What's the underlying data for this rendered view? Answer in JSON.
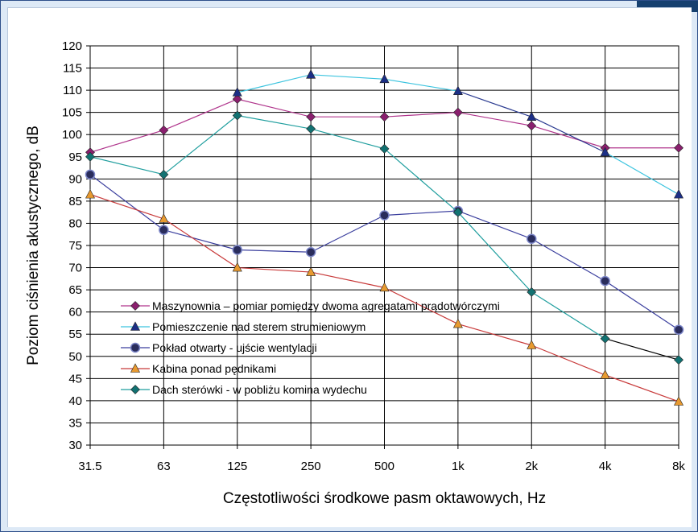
{
  "chart_data": {
    "type": "line",
    "title": "",
    "xlabel": "Częstotliwości środkowe pasm oktawowych, Hz",
    "ylabel": "Poziom ciśnienia akustycznego, dB",
    "categories": [
      "31.5",
      "63",
      "125",
      "250",
      "500",
      "1k",
      "2k",
      "4k",
      "8k"
    ],
    "ylim": [
      30,
      120
    ],
    "ytick_step": 5,
    "grid": true,
    "legend_position": "lower-left (inside plot)",
    "series": [
      {
        "name": "Maszynownia – pomiar pomiędzy dwoma agregatami prądotwórczymi",
        "values": [
          96,
          101,
          108,
          104,
          104,
          105,
          102,
          97,
          97
        ],
        "color": "#b0358c",
        "marker": "diamond",
        "marker_color": "#8a1f6e"
      },
      {
        "name": "Pomieszczenie nad sterem strumieniowym",
        "values": [
          null,
          null,
          109.5,
          113.5,
          112.5,
          109.8,
          104,
          96,
          86.5
        ],
        "color": "#3cc4df",
        "marker": "triangle",
        "marker_color": "#1c2f86",
        "segment_colors": [
          "#3cc4df",
          "#3cc4df",
          "#3cc4df",
          "#3cc4df",
          "#3cc4df",
          "#2a3a90",
          "#2a3a90"
        ]
      },
      {
        "name": "Pokład otwarty - ujście wentylacji",
        "values": [
          91,
          78.5,
          74,
          73.5,
          81.8,
          82.8,
          76.5,
          67,
          56
        ],
        "color": "#3b3f9e",
        "marker": "circle",
        "marker_color": "#2a2d5c"
      },
      {
        "name": "Kabina ponad pędnikami",
        "values": [
          86.5,
          81,
          70,
          69,
          65.5,
          57.3,
          52.5,
          45.8,
          39.8
        ],
        "color": "#c83a3a",
        "marker": "triangle",
        "marker_color": "#e89a30"
      },
      {
        "name": "Dach sterówki - w pobliżu komina wydechu",
        "values": [
          95,
          91,
          104.3,
          101.3,
          96.8,
          82.5,
          64.5,
          54,
          49.2
        ],
        "color": "#1f9e9e",
        "marker": "diamond",
        "marker_color": "#127272",
        "segment_colors": [
          "#1f9e9e",
          "#1f9e9e",
          "#1f9e9e",
          "#1f9e9e",
          "#1f9e9e",
          "#1f9e9e",
          "#1f9e9e",
          "#000000"
        ]
      }
    ]
  }
}
